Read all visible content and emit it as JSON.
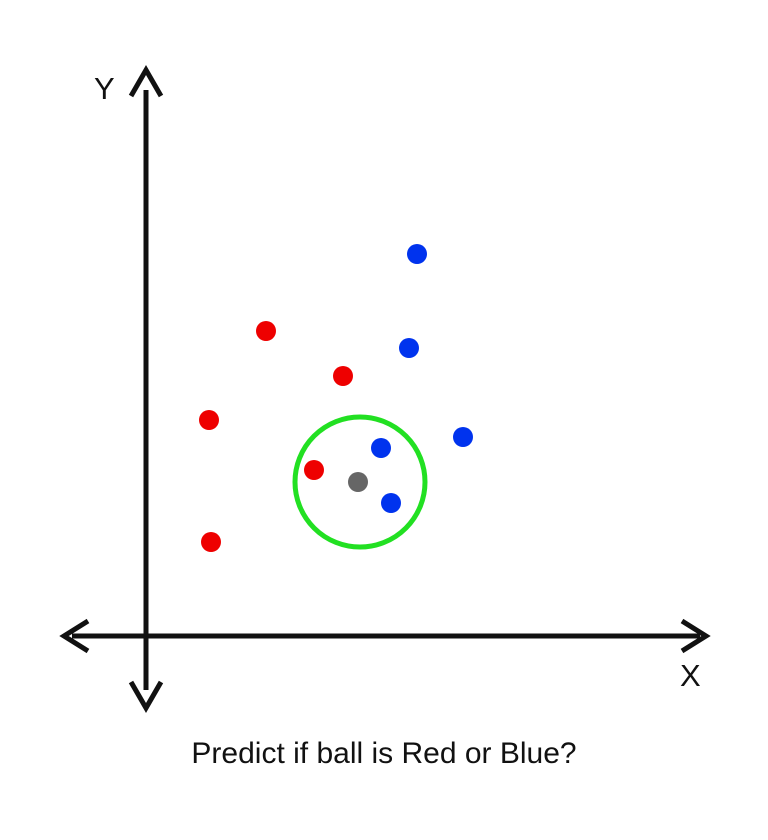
{
  "labels": {
    "y_axis": "Y",
    "x_axis": "X",
    "caption": "Predict if ball is Red or Blue?"
  },
  "colors": {
    "axis": "#111111",
    "red": "#ee0000",
    "blue": "#0033ee",
    "query": "#666666",
    "neighborhood": "#22e022"
  },
  "points": [
    {
      "class": "red"
    },
    {
      "class": "red"
    },
    {
      "class": "red"
    },
    {
      "class": "red"
    },
    {
      "class": "red"
    },
    {
      "class": "blue"
    },
    {
      "class": "blue"
    },
    {
      "class": "blue"
    },
    {
      "class": "blue"
    },
    {
      "class": "blue"
    }
  ]
}
